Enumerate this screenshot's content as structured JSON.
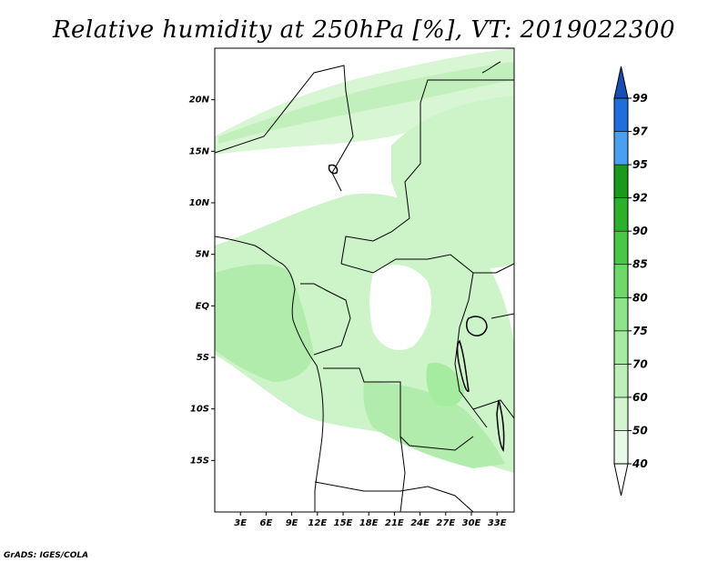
{
  "title": "Relative humidity at 250hPa [%], VT: 2019022300",
  "credit": "GrADS: IGES/COLA",
  "map": {
    "lon_range": [
      0,
      35
    ],
    "lat_range": [
      -20,
      25
    ],
    "lat_ticks": [
      {
        "value": 20,
        "label": "20N"
      },
      {
        "value": 15,
        "label": "15N"
      },
      {
        "value": 10,
        "label": "10N"
      },
      {
        "value": 5,
        "label": "5N"
      },
      {
        "value": 0,
        "label": "EQ"
      },
      {
        "value": -5,
        "label": "5S"
      },
      {
        "value": -10,
        "label": "10S"
      },
      {
        "value": -15,
        "label": "15S"
      }
    ],
    "lon_ticks": [
      {
        "value": 3,
        "label": "3E"
      },
      {
        "value": 6,
        "label": "6E"
      },
      {
        "value": 9,
        "label": "9E"
      },
      {
        "value": 12,
        "label": "12E"
      },
      {
        "value": 15,
        "label": "15E"
      },
      {
        "value": 18,
        "label": "18E"
      },
      {
        "value": 21,
        "label": "21E"
      },
      {
        "value": 24,
        "label": "24E"
      },
      {
        "value": 27,
        "label": "27E"
      },
      {
        "value": 30,
        "label": "30E"
      },
      {
        "value": 33,
        "label": "33E"
      }
    ]
  },
  "colorbar": {
    "levels": [
      "40",
      "50",
      "60",
      "70",
      "75",
      "80",
      "85",
      "90",
      "92",
      "95",
      "97",
      "99"
    ],
    "colors": [
      "#ffffff",
      "#e6fae6",
      "#d2f5d0",
      "#bdf0b8",
      "#a5eba0",
      "#8ee48a",
      "#6ed86a",
      "#48c844",
      "#2bb12a",
      "#199a18",
      "#4aa0f0",
      "#1e6ee0",
      "#1450b4"
    ]
  }
}
